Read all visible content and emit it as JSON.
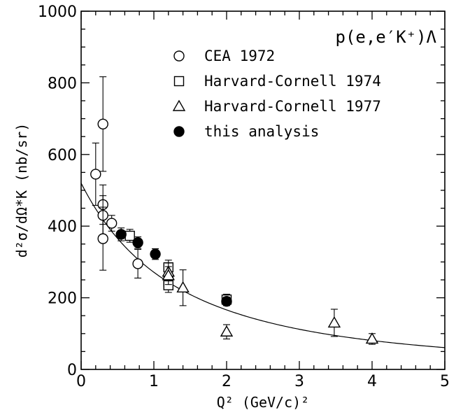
{
  "chart_data": {
    "type": "scatter",
    "title": "",
    "annotation": "p(e,e′K⁺)Λ",
    "xlabel": "Q² (GeV/c)²",
    "ylabel": "d²σ/dΩ*K (nb/sr)",
    "xlim": [
      0,
      5
    ],
    "ylim": [
      0,
      1000
    ],
    "xticks": [
      0,
      1,
      2,
      3,
      4,
      5
    ],
    "yticks": [
      0,
      200,
      400,
      600,
      800,
      1000
    ],
    "grid": false,
    "legend_position": "top-right",
    "series": [
      {
        "name": "CEA 1972",
        "marker": "circle-open",
        "points": [
          {
            "x": 0.2,
            "y": 545,
            "err": 87
          },
          {
            "x": 0.3,
            "y": 685,
            "err": 132
          },
          {
            "x": 0.3,
            "y": 460,
            "err": 55
          },
          {
            "x": 0.3,
            "y": 430,
            "err": 55
          },
          {
            "x": 0.3,
            "y": 365,
            "err": 88
          },
          {
            "x": 0.42,
            "y": 408,
            "err": 22
          },
          {
            "x": 0.78,
            "y": 295,
            "err": 40
          }
        ]
      },
      {
        "name": "Harvard-Cornell 1974",
        "marker": "square-open",
        "points": [
          {
            "x": 0.67,
            "y": 373,
            "err": 18
          },
          {
            "x": 1.2,
            "y": 285,
            "err": 20
          },
          {
            "x": 1.2,
            "y": 245,
            "err": 20
          },
          {
            "x": 1.2,
            "y": 235,
            "err": 20
          },
          {
            "x": 2.0,
            "y": 195,
            "err": 15
          }
        ]
      },
      {
        "name": "Harvard-Cornell 1977",
        "marker": "triangle-open",
        "points": [
          {
            "x": 1.2,
            "y": 272,
            "err": 25
          },
          {
            "x": 1.2,
            "y": 262,
            "err": 25
          },
          {
            "x": 1.4,
            "y": 228,
            "err": 50
          },
          {
            "x": 2.0,
            "y": 105,
            "err": 20
          },
          {
            "x": 3.48,
            "y": 130,
            "err": 38
          },
          {
            "x": 4.0,
            "y": 85,
            "err": 15
          }
        ]
      },
      {
        "name": "this analysis",
        "marker": "circle-filled",
        "points": [
          {
            "x": 0.55,
            "y": 377,
            "err": 18
          },
          {
            "x": 0.78,
            "y": 354,
            "err": 16
          },
          {
            "x": 1.02,
            "y": 322,
            "err": 15
          },
          {
            "x": 2.0,
            "y": 190,
            "err": 12
          }
        ]
      }
    ],
    "fit_curve": {
      "form": "y = A / (1 + x/L)^2",
      "A": 520,
      "L": 2.6
    }
  }
}
